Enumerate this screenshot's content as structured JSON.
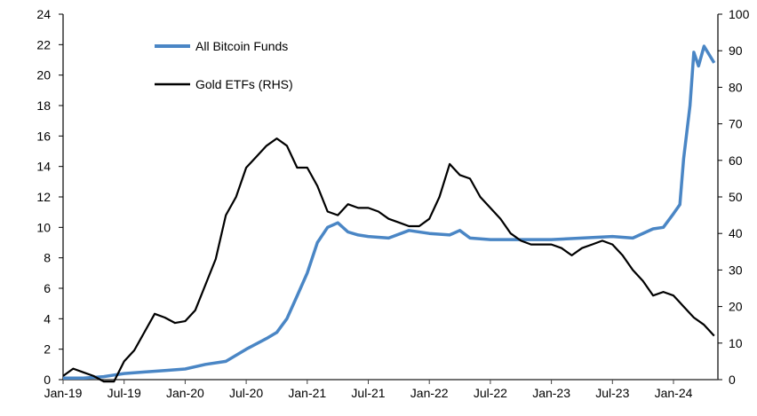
{
  "chart_data": {
    "type": "line",
    "title": "",
    "xlabel": "",
    "ylabel": "",
    "y2label": "",
    "x_ticks": [
      "Jan-19",
      "Jul-19",
      "Jan-20",
      "Jul-20",
      "Jan-21",
      "Jul-21",
      "Jan-22",
      "Jul-22",
      "Jan-23",
      "Jul-23",
      "Jan-24"
    ],
    "ylim": [
      0,
      24
    ],
    "y_ticks": [
      0,
      2,
      4,
      6,
      8,
      10,
      12,
      14,
      16,
      18,
      20,
      22,
      24
    ],
    "y2lim": [
      0,
      100
    ],
    "y2_ticks": [
      0,
      10,
      20,
      30,
      40,
      50,
      60,
      70,
      80,
      90,
      100
    ],
    "grid": false,
    "legend_position": "top-left",
    "series": [
      {
        "name": "All Bitcoin Funds",
        "axis": "left",
        "color": "#4A86C5",
        "x": [
          "2019-01",
          "2019-03",
          "2019-05",
          "2019-07",
          "2019-09",
          "2019-11",
          "2020-01",
          "2020-03",
          "2020-05",
          "2020-07",
          "2020-09",
          "2020-10",
          "2020-11",
          "2020-12",
          "2021-01",
          "2021-02",
          "2021-03",
          "2021-04",
          "2021-05",
          "2021-06",
          "2021-07",
          "2021-09",
          "2021-11",
          "2022-01",
          "2022-03",
          "2022-04",
          "2022-05",
          "2022-07",
          "2022-10",
          "2023-01",
          "2023-04",
          "2023-07",
          "2023-09",
          "2023-11",
          "2023-12",
          "2024-01",
          "2024-01-20",
          "2024-02",
          "2024-02-20",
          "2024-03",
          "2024-03-15",
          "2024-04",
          "2024-05"
        ],
        "y": [
          0.1,
          0.1,
          0.2,
          0.4,
          0.5,
          0.6,
          0.7,
          1.0,
          1.2,
          2.0,
          2.7,
          3.1,
          4.0,
          5.5,
          7.0,
          9.0,
          10.0,
          10.3,
          9.7,
          9.5,
          9.4,
          9.3,
          9.8,
          9.6,
          9.5,
          9.8,
          9.3,
          9.2,
          9.2,
          9.2,
          9.3,
          9.4,
          9.3,
          9.9,
          10.0,
          10.9,
          11.5,
          14.5,
          18.0,
          21.5,
          20.6,
          21.9,
          20.8
        ]
      },
      {
        "name": "Gold ETFs (RHS)",
        "axis": "right",
        "color": "#000000",
        "x": [
          "2019-01",
          "2019-02",
          "2019-03",
          "2019-04",
          "2019-05",
          "2019-06",
          "2019-07",
          "2019-08",
          "2019-09",
          "2019-10",
          "2019-11",
          "2019-12",
          "2020-01",
          "2020-02",
          "2020-03",
          "2020-04",
          "2020-05",
          "2020-06",
          "2020-07",
          "2020-08",
          "2020-09",
          "2020-10",
          "2020-11",
          "2020-12",
          "2021-01",
          "2021-02",
          "2021-03",
          "2021-04",
          "2021-05",
          "2021-06",
          "2021-07",
          "2021-08",
          "2021-09",
          "2021-10",
          "2021-11",
          "2021-12",
          "2022-01",
          "2022-02",
          "2022-03",
          "2022-04",
          "2022-05",
          "2022-06",
          "2022-07",
          "2022-08",
          "2022-09",
          "2022-10",
          "2022-11",
          "2022-12",
          "2023-01",
          "2023-02",
          "2023-03",
          "2023-04",
          "2023-05",
          "2023-06",
          "2023-07",
          "2023-08",
          "2023-09",
          "2023-10",
          "2023-11",
          "2023-12",
          "2024-01",
          "2024-02",
          "2024-03",
          "2024-04",
          "2024-05"
        ],
        "y": [
          1,
          3,
          2,
          1,
          -0.5,
          -0.5,
          5,
          8,
          13,
          18,
          17,
          15.5,
          16,
          19,
          26,
          33,
          45,
          50,
          58,
          61,
          64,
          66,
          64,
          58,
          58,
          53,
          46,
          45,
          48,
          47,
          47,
          46,
          44,
          43,
          42,
          42,
          44,
          50,
          59,
          56,
          55,
          50,
          47,
          44,
          40,
          38,
          37,
          37,
          37,
          36,
          34,
          36,
          37,
          38,
          37,
          34,
          30,
          27,
          23,
          24,
          23,
          20,
          17,
          15,
          12
        ]
      }
    ]
  }
}
